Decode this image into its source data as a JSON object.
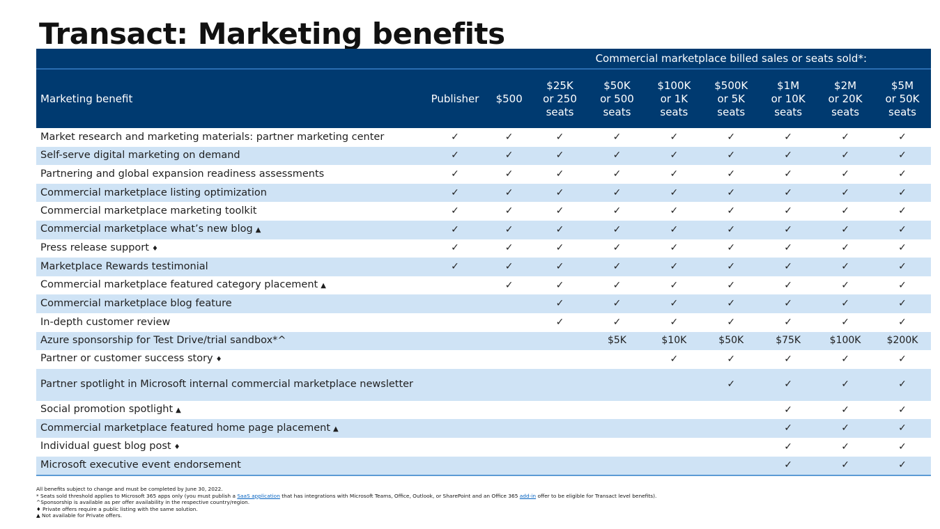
{
  "title": "Transact: Marketing benefits",
  "table": {
    "group_header": "Commercial marketplace billed sales or seats sold*:",
    "columns": [
      "Marketing benefit",
      "Publisher",
      "$500",
      "$25K\nor 250\nseats",
      "$50K\nor 500\nseats",
      "$100K\nor 1K\nseats",
      "$500K\nor 5K\nseats",
      "$1M\nor 10K\nseats",
      "$2M\nor 20K\nseats",
      "$5M\nor 50K\nseats"
    ],
    "rows": [
      {
        "benefit": "Market research and marketing materials: partner marketing center",
        "marker": "",
        "cells": [
          "✓",
          "✓",
          "✓",
          "✓",
          "✓",
          "✓",
          "✓",
          "✓",
          "✓"
        ]
      },
      {
        "benefit": "Self-serve digital marketing on demand",
        "marker": "",
        "cells": [
          "✓",
          "✓",
          "✓",
          "✓",
          "✓",
          "✓",
          "✓",
          "✓",
          "✓"
        ]
      },
      {
        "benefit": "Partnering and global expansion readiness assessments",
        "marker": "",
        "cells": [
          "✓",
          "✓",
          "✓",
          "✓",
          "✓",
          "✓",
          "✓",
          "✓",
          "✓"
        ]
      },
      {
        "benefit": "Commercial marketplace listing optimization",
        "marker": "",
        "cells": [
          "✓",
          "✓",
          "✓",
          "✓",
          "✓",
          "✓",
          "✓",
          "✓",
          "✓"
        ]
      },
      {
        "benefit": "Commercial marketplace marketing toolkit",
        "marker": "",
        "cells": [
          "✓",
          "✓",
          "✓",
          "✓",
          "✓",
          "✓",
          "✓",
          "✓",
          "✓"
        ]
      },
      {
        "benefit": "Commercial marketplace what’s new blog",
        "marker": "▲",
        "cells": [
          "✓",
          "✓",
          "✓",
          "✓",
          "✓",
          "✓",
          "✓",
          "✓",
          "✓"
        ]
      },
      {
        "benefit": "Press release support",
        "marker": "♦",
        "cells": [
          "✓",
          "✓",
          "✓",
          "✓",
          "✓",
          "✓",
          "✓",
          "✓",
          "✓"
        ]
      },
      {
        "benefit": "Marketplace Rewards testimonial",
        "marker": "",
        "cells": [
          "✓",
          "✓",
          "✓",
          "✓",
          "✓",
          "✓",
          "✓",
          "✓",
          "✓"
        ]
      },
      {
        "benefit": "Commercial marketplace featured category placement",
        "marker": "▲",
        "cells": [
          "",
          "✓",
          "✓",
          "✓",
          "✓",
          "✓",
          "✓",
          "✓",
          "✓"
        ]
      },
      {
        "benefit": "Commercial marketplace blog feature",
        "marker": "",
        "cells": [
          "",
          "",
          "✓",
          "✓",
          "✓",
          "✓",
          "✓",
          "✓",
          "✓"
        ]
      },
      {
        "benefit": "In-depth customer review",
        "marker": "",
        "cells": [
          "",
          "",
          "✓",
          "✓",
          "✓",
          "✓",
          "✓",
          "✓",
          "✓"
        ]
      },
      {
        "benefit": "Azure sponsorship for Test Drive/trial sandbox*^",
        "marker": "",
        "cells": [
          "",
          "",
          "",
          "$5K",
          "$10K",
          "$50K",
          "$75K",
          "$100K",
          "$200K"
        ]
      },
      {
        "benefit": "Partner or customer success story",
        "marker": "♦",
        "cells": [
          "",
          "",
          "",
          "",
          "✓",
          "✓",
          "✓",
          "✓",
          "✓"
        ]
      },
      {
        "benefit": "Partner spotlight in Microsoft internal commercial marketplace newsletter",
        "marker": "",
        "tall": true,
        "cells": [
          "",
          "",
          "",
          "",
          "",
          "✓",
          "✓",
          "✓",
          "✓"
        ]
      },
      {
        "benefit": "Social promotion spotlight",
        "marker": "▲",
        "cells": [
          "",
          "",
          "",
          "",
          "",
          "",
          "✓",
          "✓",
          "✓"
        ]
      },
      {
        "benefit": "Commercial marketplace featured home page placement",
        "marker": "▲",
        "cells": [
          "",
          "",
          "",
          "",
          "",
          "",
          "✓",
          "✓",
          "✓"
        ]
      },
      {
        "benefit": "Individual guest blog post",
        "marker": "♦",
        "cells": [
          "",
          "",
          "",
          "",
          "",
          "",
          "✓",
          "✓",
          "✓"
        ]
      },
      {
        "benefit": "Microsoft executive event endorsement",
        "marker": "",
        "cells": [
          "",
          "",
          "",
          "",
          "",
          "",
          "✓",
          "✓",
          "✓"
        ]
      }
    ]
  },
  "footnotes": {
    "line1": "All benefits subject to change and must be completed by June 30, 2022.",
    "line2_before": "* Seats sold threshold applies to Microsoft 365 apps only (you must publish a ",
    "line2_link1": "SaaS application",
    "line2_middle": " that has integrations with Microsoft Teams, Office, Outlook, or SharePoint and an Office 365 ",
    "line2_link2": "add-in",
    "line2_after": " offer to be eligible for Transact level benefits).",
    "line3": "^Sponsorship is available as per offer availability in the respective country/region.",
    "line4": "♦ Private offers require a public listing with the same solution.",
    "line5": "▲ Not available for Private offers."
  },
  "colors": {
    "header_bg": "#003a70",
    "row_alt_bg": "#cfe3f5",
    "link": "#0563c1"
  },
  "icons": {
    "check": "checkmark-icon",
    "triangle": "triangle-marker-icon",
    "diamond": "diamond-marker-icon"
  }
}
